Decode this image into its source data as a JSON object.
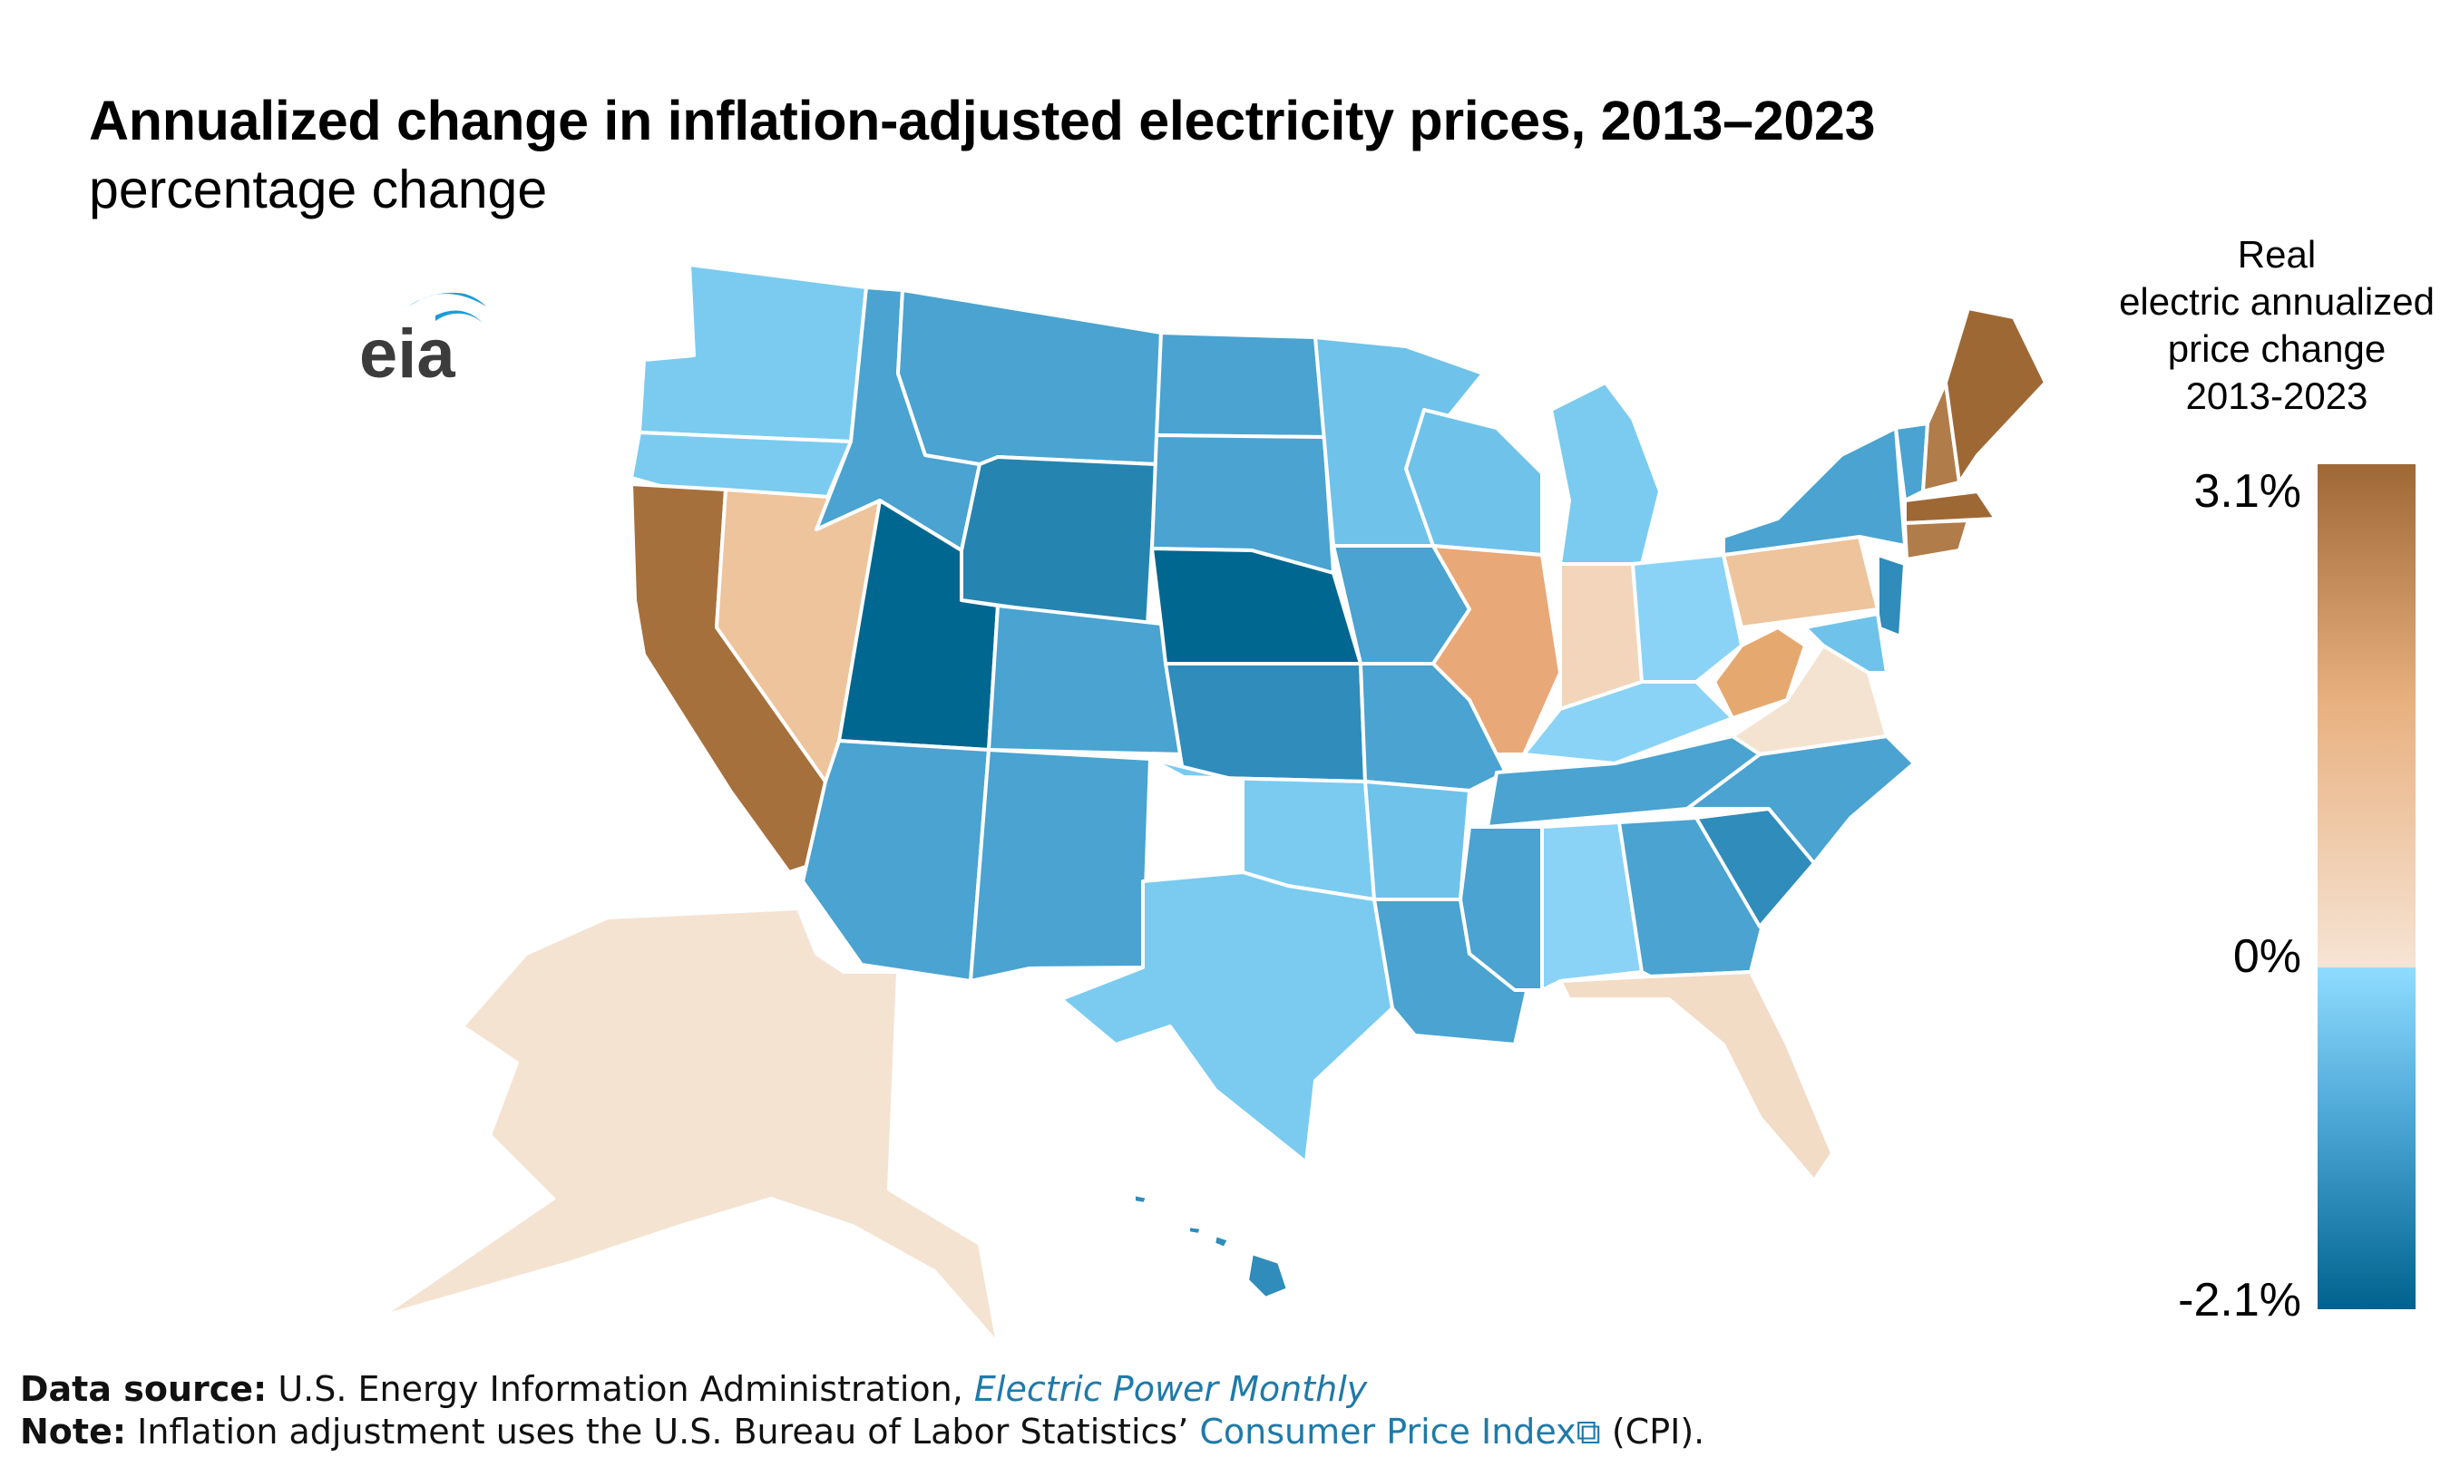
{
  "title": "Annualized change in inflation-adjusted electricity prices, 2013–2023",
  "subtitle": "percentage change",
  "logo": {
    "text": "eia",
    "arc_color": "#1e9bd7",
    "text_color": "#3c3c3c"
  },
  "legend": {
    "title_lines": [
      "Real",
      "electric annualized",
      "price change",
      "2013-2023"
    ],
    "max_label": "3.1%",
    "zero_label": "0%",
    "min_label": "-2.1%",
    "scale": {
      "max": 3.1,
      "zero": 0,
      "min": -2.1,
      "color_max": "#9e6835",
      "color_warm_mid": "#e8b07f",
      "color_zero_warm": "#f6e4d4",
      "color_zero_cool": "#8fdcff",
      "color_cool_mid": "#4aa5d4",
      "color_min": "#00628e"
    }
  },
  "map_regions": [
    {
      "name": "WA",
      "color": "#7acbef"
    },
    {
      "name": "OR",
      "color": "#7acbef"
    },
    {
      "name": "CA",
      "color": "#a6703c"
    },
    {
      "name": "NV",
      "color": "#edc49c"
    },
    {
      "name": "ID",
      "color": "#4aa3d0"
    },
    {
      "name": "MT",
      "color": "#4aa3d0"
    },
    {
      "name": "WY",
      "color": "#2684b0"
    },
    {
      "name": "UT",
      "color": "#006790"
    },
    {
      "name": "CO",
      "color": "#4aa3d0"
    },
    {
      "name": "AZ",
      "color": "#4aa3d0"
    },
    {
      "name": "NM",
      "color": "#4aa3d0"
    },
    {
      "name": "ND",
      "color": "#4aa3d0"
    },
    {
      "name": "SD",
      "color": "#4aa3d0"
    },
    {
      "name": "NE",
      "color": "#006790"
    },
    {
      "name": "KS",
      "color": "#2f8cbb"
    },
    {
      "name": "OK",
      "color": "#7acbef"
    },
    {
      "name": "TX",
      "color": "#7acbef"
    },
    {
      "name": "MN",
      "color": "#6fc2ea"
    },
    {
      "name": "IA",
      "color": "#4aa3d0"
    },
    {
      "name": "MO",
      "color": "#4aa3d0"
    },
    {
      "name": "AR",
      "color": "#6fc2ea"
    },
    {
      "name": "LA",
      "color": "#4aa3d0"
    },
    {
      "name": "WI",
      "color": "#6fc2ea"
    },
    {
      "name": "IL",
      "color": "#e8a878"
    },
    {
      "name": "MI",
      "color": "#7acbef"
    },
    {
      "name": "IN",
      "color": "#f2d5ba"
    },
    {
      "name": "OH",
      "color": "#8ad3f6"
    },
    {
      "name": "KY",
      "color": "#8ad3f6"
    },
    {
      "name": "TN",
      "color": "#4aa3d0"
    },
    {
      "name": "MS",
      "color": "#4aa3d0"
    },
    {
      "name": "AL",
      "color": "#8ad3f6"
    },
    {
      "name": "GA",
      "color": "#4aa3d0"
    },
    {
      "name": "FL",
      "color": "#f2dcc6"
    },
    {
      "name": "SC",
      "color": "#2f8cbb"
    },
    {
      "name": "NC",
      "color": "#4aa3d0"
    },
    {
      "name": "VA",
      "color": "#f5e3d2"
    },
    {
      "name": "WV",
      "color": "#e5a86f"
    },
    {
      "name": "PA",
      "color": "#edc49c"
    },
    {
      "name": "NY",
      "color": "#4aa3d0"
    },
    {
      "name": "VT",
      "color": "#4aa3d0"
    },
    {
      "name": "NH",
      "color": "#b07c4a"
    },
    {
      "name": "ME",
      "color": "#9e6835"
    },
    {
      "name": "MA",
      "color": "#9e6835"
    },
    {
      "name": "CT",
      "color": "#b07c4a"
    },
    {
      "name": "NJ",
      "color": "#2f8cbb"
    },
    {
      "name": "MD",
      "color": "#6fc2ea"
    },
    {
      "name": "AK",
      "color": "#f5e3d2"
    },
    {
      "name": "HI",
      "color": "#2f8cbb"
    }
  ],
  "footer": {
    "source_label": "Data source:",
    "source_text": "U.S. Energy Information Administration,",
    "source_link": "Electric Power Monthly",
    "note_label": "Note:",
    "note_text": "Inflation adjustment uses the U.S. Bureau of Labor Statistics’",
    "note_link": "Consumer Price Index",
    "note_suffix": "(CPI).",
    "link_color": "#1f7aa8"
  }
}
